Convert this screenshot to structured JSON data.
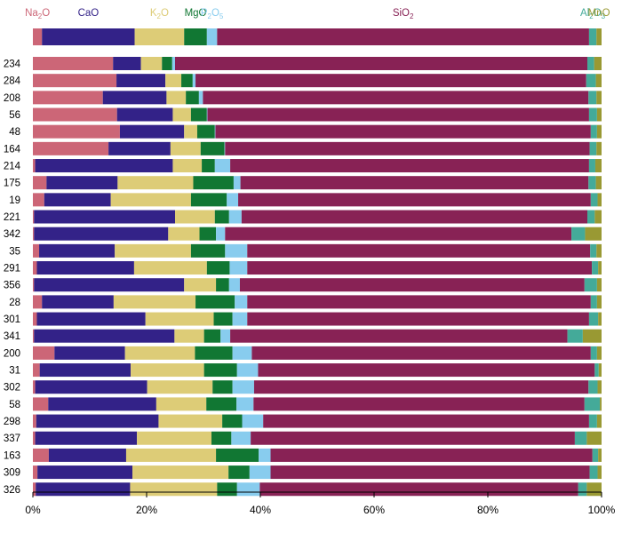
{
  "chart_data": {
    "type": "bar",
    "orientation": "horizontal",
    "stacked": true,
    "percent_scale": true,
    "title": "",
    "xlabel": "",
    "ylabel": "",
    "xlim": [
      0,
      100
    ],
    "x_ticks": [
      "0%",
      "20%",
      "40%",
      "60%",
      "80%",
      "100%"
    ],
    "grid": false,
    "legend": "top, labels above bar segments",
    "legend_labels": [
      {
        "text": "Na",
        "sub": "2",
        "tail": "O",
        "color": "#cc6677"
      },
      {
        "text": "CaO",
        "sub": "",
        "tail": "",
        "color": "#332288"
      },
      {
        "text": "K",
        "sub": "2",
        "tail": "O",
        "color": "#ddcc77"
      },
      {
        "text": "MgO",
        "sub": "",
        "tail": "",
        "color": "#117733"
      },
      {
        "text": "P",
        "sub": "2",
        "tail": "O",
        "sub2": "5",
        "color": "#88ccee"
      },
      {
        "text": "SiO",
        "sub": "2",
        "tail": "",
        "color": "#882255"
      },
      {
        "text": "Al",
        "sub": "2",
        "tail": "O",
        "sub2": "3",
        "color": "#44aa99"
      },
      {
        "text": "MnO",
        "sub": "",
        "tail": "",
        "color": "#999933"
      }
    ],
    "series": [
      {
        "key": "Na2O",
        "color": "#cc6677"
      },
      {
        "key": "CaO",
        "color": "#332288"
      },
      {
        "key": "K2O",
        "color": "#ddcc77"
      },
      {
        "key": "MgO",
        "color": "#117733"
      },
      {
        "key": "P2O5",
        "color": "#88ccee"
      },
      {
        "key": "SiO2",
        "color": "#882255"
      },
      {
        "key": "Al2O3",
        "color": "#44aa99"
      },
      {
        "key": "MnO",
        "color": "#999933"
      }
    ],
    "rows": [
      {
        "label": "",
        "values": [
          1.6,
          16.3,
          8.7,
          4.0,
          1.8,
          65.4,
          1.3,
          0.9
        ]
      },
      {
        "label": "234",
        "values": [
          14.1,
          4.9,
          3.7,
          1.8,
          0.5,
          72.5,
          1.2,
          1.3
        ]
      },
      {
        "label": "284",
        "values": [
          14.7,
          8.6,
          2.8,
          2.0,
          0.5,
          68.7,
          1.7,
          1.0
        ]
      },
      {
        "label": "208",
        "values": [
          12.3,
          11.2,
          3.4,
          2.3,
          0.7,
          67.8,
          1.4,
          0.9
        ]
      },
      {
        "label": "56",
        "values": [
          14.8,
          9.8,
          3.2,
          2.8,
          0.1,
          67.1,
          1.4,
          0.8
        ]
      },
      {
        "label": "48",
        "values": [
          15.3,
          11.3,
          2.3,
          3.1,
          0.1,
          66.0,
          1.1,
          0.8
        ]
      },
      {
        "label": "164",
        "values": [
          13.3,
          10.9,
          5.3,
          4.2,
          0.1,
          64.1,
          1.2,
          0.9
        ]
      },
      {
        "label": "214",
        "values": [
          0.4,
          24.2,
          5.1,
          2.3,
          2.7,
          63.1,
          1.1,
          1.1
        ]
      },
      {
        "label": "175",
        "values": [
          2.4,
          12.5,
          13.3,
          7.1,
          1.2,
          61.2,
          1.3,
          1.0
        ]
      },
      {
        "label": "19",
        "values": [
          2.0,
          11.7,
          14.1,
          6.3,
          2.0,
          62.0,
          1.2,
          0.7
        ]
      },
      {
        "label": "221",
        "values": [
          0.2,
          24.8,
          7.0,
          2.5,
          2.2,
          60.8,
          1.3,
          1.2
        ]
      },
      {
        "label": "342",
        "values": [
          0.2,
          23.6,
          5.5,
          2.9,
          1.6,
          60.9,
          2.4,
          2.9
        ]
      },
      {
        "label": "35",
        "values": [
          1.1,
          13.3,
          13.4,
          6.0,
          3.9,
          60.3,
          1.1,
          0.9
        ]
      },
      {
        "label": "291",
        "values": [
          0.7,
          17.1,
          12.8,
          4.0,
          3.1,
          60.6,
          1.1,
          0.6
        ]
      },
      {
        "label": "356",
        "values": [
          0.2,
          26.4,
          5.6,
          2.3,
          1.9,
          60.6,
          2.2,
          0.8
        ]
      },
      {
        "label": "28",
        "values": [
          1.6,
          12.6,
          14.4,
          6.9,
          2.2,
          60.4,
          1.1,
          0.8
        ]
      },
      {
        "label": "301",
        "values": [
          0.7,
          19.1,
          12.0,
          3.3,
          2.6,
          60.1,
          1.6,
          0.6
        ]
      },
      {
        "label": "341",
        "values": [
          0.2,
          24.7,
          5.2,
          2.9,
          1.7,
          59.3,
          2.7,
          3.3
        ]
      },
      {
        "label": "200",
        "values": [
          3.8,
          12.4,
          12.3,
          6.6,
          3.4,
          59.6,
          1.1,
          0.8
        ]
      },
      {
        "label": "31",
        "values": [
          1.2,
          16.0,
          12.9,
          5.8,
          3.7,
          59.2,
          0.7,
          0.5
        ]
      },
      {
        "label": "302",
        "values": [
          0.4,
          19.7,
          11.5,
          3.5,
          3.8,
          58.8,
          1.6,
          0.7
        ]
      },
      {
        "label": "58",
        "values": [
          2.7,
          19.0,
          8.8,
          5.3,
          3.0,
          58.2,
          2.7,
          0.3
        ]
      },
      {
        "label": "298",
        "values": [
          0.6,
          21.5,
          11.2,
          3.5,
          3.7,
          57.3,
          1.4,
          0.8
        ]
      },
      {
        "label": "337",
        "values": [
          0.4,
          17.9,
          13.1,
          3.5,
          3.4,
          57.0,
          2.1,
          2.6
        ]
      },
      {
        "label": "163",
        "values": [
          2.8,
          13.6,
          15.8,
          7.5,
          2.1,
          56.6,
          1.0,
          0.6
        ]
      },
      {
        "label": "309",
        "values": [
          0.8,
          16.7,
          16.9,
          3.7,
          3.7,
          56.1,
          1.4,
          0.7
        ]
      },
      {
        "label": "326",
        "values": [
          0.5,
          16.6,
          15.3,
          3.5,
          4.0,
          56.0,
          1.5,
          2.6
        ]
      }
    ]
  }
}
